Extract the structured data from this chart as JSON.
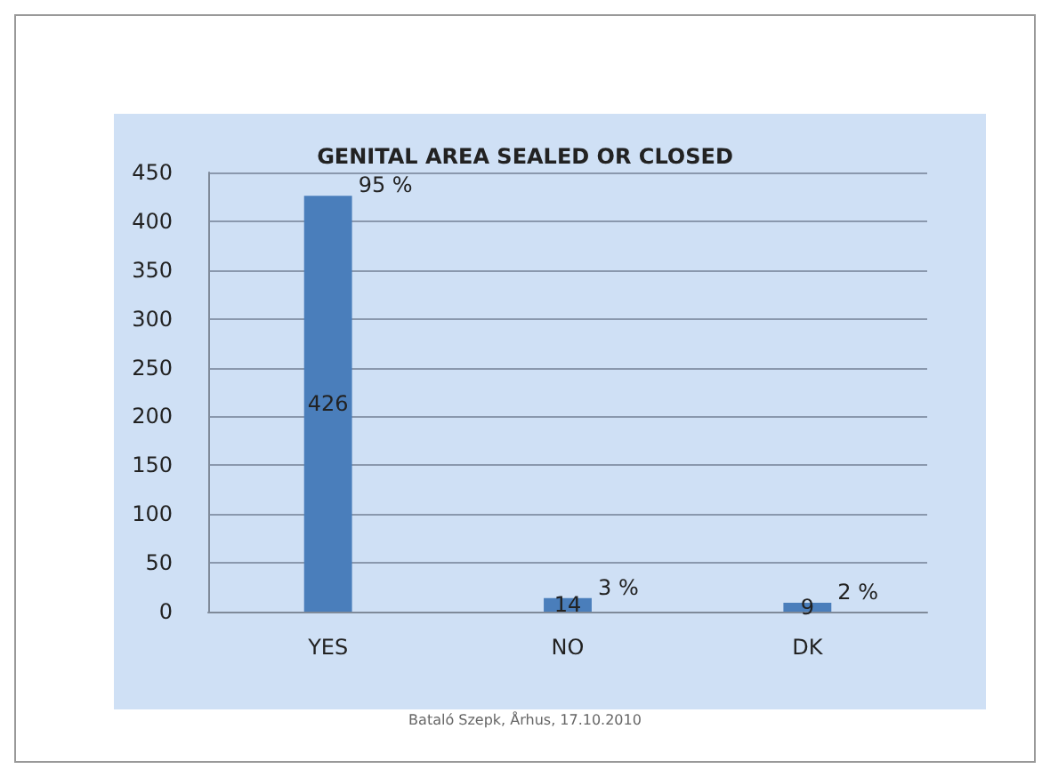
{
  "chart_data": {
    "type": "bar",
    "title": "GENITAL AREA SEALED OR CLOSED",
    "categories": [
      "YES",
      "NO",
      "DK"
    ],
    "values": [
      426,
      14,
      9
    ],
    "color": "#4a7ebb",
    "ylim": [
      0,
      450
    ],
    "yticks": [
      0,
      50,
      100,
      150,
      200,
      250,
      300,
      350,
      400,
      450
    ],
    "grid": "y",
    "data_labels": true,
    "annotations": [
      {
        "text": "95 %",
        "x": "YES",
        "y": 426
      },
      {
        "text": "3 %",
        "x": "NO",
        "y": 14
      },
      {
        "text": "2 %",
        "x": "DK",
        "y": 9
      },
      "Bataló Szepk, Århus, 17.10.2010"
    ]
  }
}
